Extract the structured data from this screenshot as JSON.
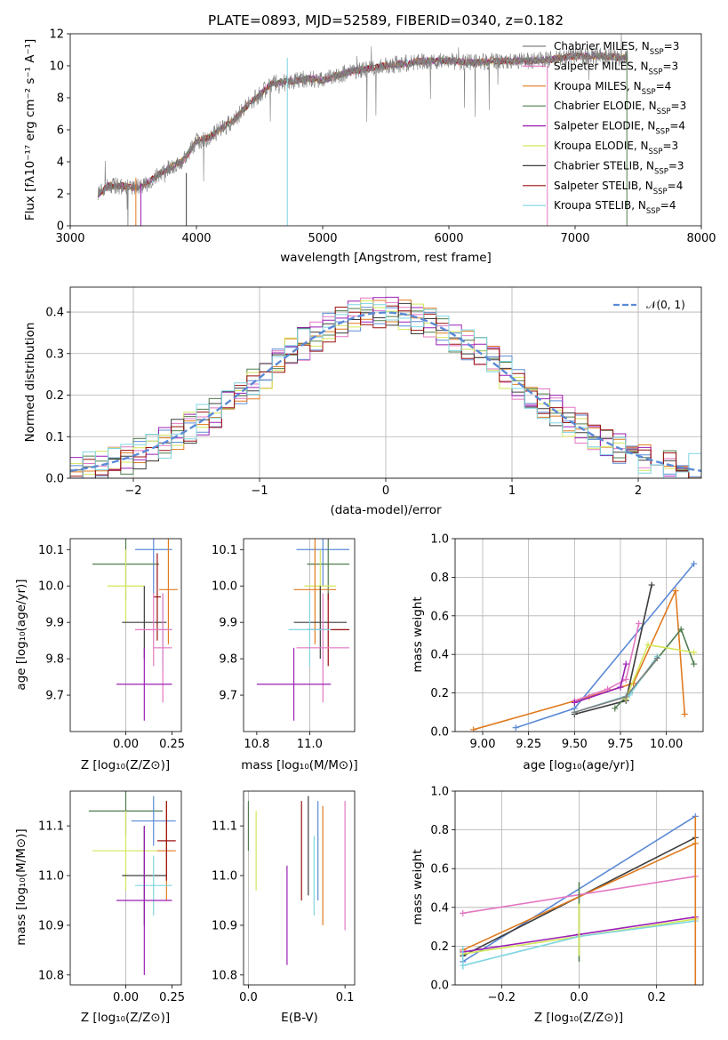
{
  "colors": {
    "chabrier_miles": "#808080",
    "salpeter_miles": "#e377c2",
    "kroupa_miles": "#e07b1f",
    "chabrier_elodie": "#4f7d4f",
    "salpeter_elodie": "#9b1fb5",
    "kroupa_elodie": "#d4e65a",
    "chabrier_stelib": "#3d3d3d",
    "salpeter_stelib": "#9b1010",
    "kroupa_stelib": "#7fd6e0",
    "normal": "#5b8ad6"
  },
  "chart_data": [
    {
      "id": "spectrum",
      "type": "line",
      "title": "PLATE=0893, MJD=52589, FIBERID=0340, z=0.182",
      "xlabel": "wavelength [Angstrom, rest frame]",
      "ylabel": "Flux [fλ10⁻¹⁷ erg cm⁻² s⁻¹ A⁻¹]",
      "xlim": [
        3000,
        8000
      ],
      "ylim": [
        0,
        12
      ],
      "xticks": [
        "3000",
        "4000",
        "5000",
        "6000",
        "7000",
        "8000"
      ],
      "yticks": [
        "0",
        "2",
        "4",
        "6",
        "8",
        "10",
        "12"
      ],
      "grid": false,
      "legend_position": "top-right",
      "legend": [
        "Chabrier MILES, N_SSP=3",
        "Salpeter MILES, N_SSP=3",
        "Kroupa MILES, N_SSP=4",
        "Chabrier ELODIE, N_SSP=3",
        "Salpeter ELODIE, N_SSP=4",
        "Kroupa ELODIE, N_SSP=3",
        "Chabrier STELIB, N_SSP=3",
        "Salpeter STELIB, N_SSP=4",
        "Kroupa STELIB, N_SSP=4"
      ],
      "continuum": {
        "x": [
          3220,
          3300,
          3400,
          3500,
          3600,
          3700,
          3800,
          3900,
          4000,
          4100,
          4200,
          4300,
          4400,
          4500,
          4600,
          4700,
          4800,
          4900,
          5000,
          5200,
          5400,
          5600,
          5800,
          6000,
          6200,
          6400,
          6600,
          6800,
          7000,
          7200,
          7400
        ],
        "y": [
          1.9,
          2.5,
          2.5,
          2.4,
          2.6,
          3.2,
          3.7,
          4.1,
          5.3,
          5.5,
          6.1,
          6.6,
          7.5,
          8.2,
          8.9,
          9.0,
          9.1,
          9.2,
          9.1,
          9.6,
          9.9,
          10.1,
          10.3,
          10.3,
          10.2,
          10.3,
          10.3,
          10.4,
          10.6,
          10.6,
          10.5
        ]
      }
    },
    {
      "id": "residuals",
      "type": "bar",
      "xlabel": "(data-model)/error",
      "ylabel": "Normed distribution",
      "xlim": [
        -2.5,
        2.5
      ],
      "ylim": [
        0,
        0.46
      ],
      "xticks": [
        "−2",
        "−1",
        "0",
        "1",
        "2"
      ],
      "yticks": [
        "0.0",
        "0.1",
        "0.2",
        "0.3",
        "0.4"
      ],
      "grid": true,
      "legend_position": "top-right",
      "legend": [
        "𝒩(0, 1)"
      ],
      "bin_width": 0.1
    },
    {
      "id": "age_vs_Z",
      "type": "scatter",
      "xlabel": "Z [log₁₀(Z/Z⊙)]",
      "ylabel": "age  [log₁₀(age/yr)]",
      "xlim": [
        -0.3,
        0.3
      ],
      "ylim": [
        9.6,
        10.13
      ],
      "xticks": [
        "0.00",
        "0.25"
      ],
      "yticks": [
        "9.7",
        "9.8",
        "9.9",
        "10.0",
        "10.1"
      ],
      "points": [
        {
          "x": 0.15,
          "xerr": 0.1,
          "y": 10.1,
          "yerr": 0.12
        },
        {
          "x": 0.0,
          "xerr": 0.18,
          "y": 10.06,
          "yerr": 0.1
        },
        {
          "x": 0.0,
          "xerr": 0.1,
          "y": 10.0,
          "yerr": 0.1
        },
        {
          "x": 0.23,
          "xerr": 0.05,
          "y": 9.99,
          "yerr": 0.15
        },
        {
          "x": 0.17,
          "xerr": 0.02,
          "y": 9.97,
          "yerr": 0.12
        },
        {
          "x": 0.1,
          "xerr": 0.12,
          "y": 9.9,
          "yerr": 0.1
        },
        {
          "x": 0.2,
          "xerr": 0.05,
          "y": 9.88,
          "yerr": 0.1
        },
        {
          "x": 0.15,
          "xerr": 0.1,
          "y": 9.88,
          "yerr": 0.1
        },
        {
          "x": 0.2,
          "xerr": 0.05,
          "y": 9.83,
          "yerr": 0.15
        },
        {
          "x": 0.1,
          "xerr": 0.15,
          "y": 9.73,
          "yerr": 0.1
        }
      ]
    },
    {
      "id": "age_vs_mass",
      "type": "scatter",
      "xlabel": "mass [log₁₀(M/M⊙)]",
      "xlim": [
        10.75,
        11.17
      ],
      "ylim": [
        9.6,
        10.13
      ],
      "xticks": [
        "10.8",
        "11.0"
      ],
      "yticks": [
        "9.7",
        "9.8",
        "9.9",
        "10.0",
        "10.1"
      ],
      "points": [
        {
          "x": 11.05,
          "xerr": 0.1,
          "y": 10.1,
          "yerr": 0.1
        },
        {
          "x": 11.07,
          "xerr": 0.08,
          "y": 10.06,
          "yerr": 0.1
        },
        {
          "x": 11.04,
          "xerr": 0.06,
          "y": 10.0,
          "yerr": 0.1
        },
        {
          "x": 11.02,
          "xerr": 0.08,
          "y": 9.99,
          "yerr": 0.15
        },
        {
          "x": 11.04,
          "xerr": 0.1,
          "y": 9.9,
          "yerr": 0.1
        },
        {
          "x": 11.07,
          "xerr": 0.08,
          "y": 9.88,
          "yerr": 0.1
        },
        {
          "x": 11.0,
          "xerr": 0.08,
          "y": 9.88,
          "yerr": 0.1
        },
        {
          "x": 11.05,
          "xerr": 0.1,
          "y": 9.83,
          "yerr": 0.15
        },
        {
          "x": 10.94,
          "xerr": 0.14,
          "y": 9.73,
          "yerr": 0.1
        }
      ]
    },
    {
      "id": "weight_vs_age",
      "type": "line",
      "xlabel": "age  [log₁₀(age/yr)]",
      "ylabel": "mass weight",
      "xlim": [
        8.85,
        10.2
      ],
      "ylim": [
        0,
        1.0
      ],
      "xticks": [
        "9.00",
        "9.25",
        "9.50",
        "9.75",
        "10.00"
      ],
      "yticks": [
        "0.0",
        "0.2",
        "0.4",
        "0.6",
        "0.8",
        "1.0"
      ],
      "grid": true,
      "series": [
        {
          "x": [
            8.95,
            9.58,
            9.82,
            10.05,
            10.1
          ],
          "y": [
            0.01,
            0.18,
            0.25,
            0.73,
            0.09
          ]
        },
        {
          "x": [
            9.18,
            9.5,
            10.15
          ],
          "y": [
            0.02,
            0.12,
            0.87
          ]
        },
        {
          "x": [
            9.5,
            9.78,
            9.92
          ],
          "y": [
            0.09,
            0.16,
            0.76
          ]
        },
        {
          "x": [
            9.5,
            9.68,
            9.78,
            9.85
          ],
          "y": [
            0.16,
            0.22,
            0.27,
            0.56
          ]
        },
        {
          "x": [
            9.72,
            9.8,
            10.08,
            10.15
          ],
          "y": [
            0.12,
            0.2,
            0.53,
            0.35
          ]
        },
        {
          "x": [
            9.78,
            9.9,
            10.15
          ],
          "y": [
            0.17,
            0.45,
            0.41
          ]
        },
        {
          "x": [
            9.5,
            9.75,
            9.78
          ],
          "y": [
            0.15,
            0.23,
            0.35
          ]
        },
        {
          "x": [
            9.5,
            9.8,
            9.95
          ],
          "y": [
            0.1,
            0.19,
            0.39
          ]
        },
        {
          "x": [
            9.5,
            9.78,
            9.95
          ],
          "y": [
            0.1,
            0.18,
            0.38
          ]
        }
      ]
    },
    {
      "id": "mass_vs_Z",
      "type": "scatter",
      "xlabel": "Z [log₁₀(Z/Z⊙)]",
      "ylabel": "mass [log₁₀(M/M⊙)]",
      "xlim": [
        -0.3,
        0.3
      ],
      "ylim": [
        10.78,
        11.17
      ],
      "xticks": [
        "0.00",
        "0.25"
      ],
      "yticks": [
        "10.8",
        "10.9",
        "11.0",
        "11.1"
      ],
      "points": [
        {
          "x": 0.0,
          "xerr": 0.2,
          "y": 11.13,
          "yerr": 0.05
        },
        {
          "x": 0.15,
          "xerr": 0.12,
          "y": 11.11,
          "yerr": 0.05
        },
        {
          "x": 0.0,
          "xerr": 0.18,
          "y": 11.05,
          "yerr": 0.08
        },
        {
          "x": 0.22,
          "xerr": 0.05,
          "y": 11.05,
          "yerr": 0.1
        },
        {
          "x": 0.1,
          "xerr": 0.12,
          "y": 11.0,
          "yerr": 0.1
        },
        {
          "x": 0.15,
          "xerr": 0.1,
          "y": 10.98,
          "yerr": 0.06
        },
        {
          "x": 0.1,
          "xerr": 0.15,
          "y": 10.95,
          "yerr": 0.15
        },
        {
          "x": 0.22,
          "xerr": 0.05,
          "y": 11.07,
          "yerr": 0.08
        }
      ]
    },
    {
      "id": "mass_vs_ebv",
      "type": "scatter",
      "xlabel": "E(B-V)",
      "xlim": [
        -0.005,
        0.11
      ],
      "ylim": [
        10.78,
        11.17
      ],
      "xticks": [
        "0.0",
        "0.1"
      ],
      "yticks": [
        "10.8",
        "10.9",
        "11.0",
        "11.1"
      ],
      "points": [
        {
          "x": 0.0,
          "y": 11.1,
          "yerr": 0.05
        },
        {
          "x": 0.008,
          "y": 11.05,
          "yerr": 0.08
        },
        {
          "x": 0.04,
          "y": 10.92,
          "yerr": 0.1
        },
        {
          "x": 0.055,
          "y": 11.05,
          "yerr": 0.1
        },
        {
          "x": 0.062,
          "y": 11.06,
          "yerr": 0.1
        },
        {
          "x": 0.068,
          "y": 11.0,
          "yerr": 0.08
        },
        {
          "x": 0.072,
          "y": 11.05,
          "yerr": 0.1
        },
        {
          "x": 0.077,
          "y": 11.02,
          "yerr": 0.12
        },
        {
          "x": 0.1,
          "y": 11.02,
          "yerr": 0.13
        }
      ]
    },
    {
      "id": "weight_vs_Z",
      "type": "line",
      "xlabel": "Z [log₁₀(Z/Z⊙)]",
      "ylabel": "mass weight",
      "xlim": [
        -0.32,
        0.32
      ],
      "ylim": [
        0,
        1.0
      ],
      "xticks": [
        "−0.2",
        "0.0",
        "0.2"
      ],
      "yticks": [
        "0.0",
        "0.2",
        "0.4",
        "0.6",
        "0.8",
        "1.0"
      ],
      "grid": true,
      "series": [
        {
          "x": [
            -0.3,
            0.3
          ],
          "y": [
            0.12,
            0.87
          ]
        },
        {
          "x": [
            -0.3,
            0.3
          ],
          "y": [
            0.15,
            0.76
          ]
        },
        {
          "x": [
            -0.3,
            0.3
          ],
          "y": [
            0.18,
            0.73
          ]
        },
        {
          "x": [
            -0.3,
            0.3
          ],
          "y": [
            0.37,
            0.56
          ]
        },
        {
          "x": [
            -0.3,
            0.0,
            0.3
          ],
          "y": [
            0.17,
            0.26,
            0.35
          ]
        },
        {
          "x": [
            -0.3,
            0.0,
            0.3
          ],
          "y": [
            0.16,
            0.25,
            0.34
          ]
        },
        {
          "x": [
            -0.3,
            0.0,
            0.3
          ],
          "y": [
            0.1,
            0.25,
            0.33
          ]
        }
      ]
    }
  ]
}
